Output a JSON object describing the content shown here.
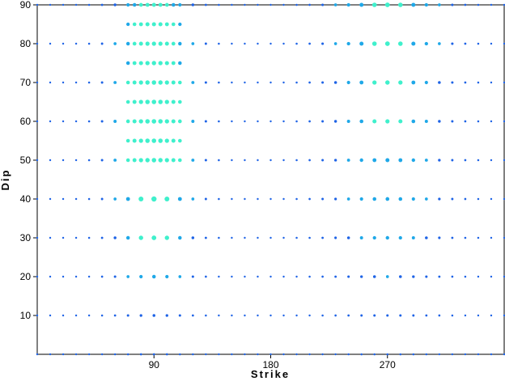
{
  "chart_data": {
    "type": "scatter",
    "title": "",
    "xlabel": "Strike",
    "ylabel": "Dip",
    "xlim": [
      0,
      360
    ],
    "ylim": [
      0,
      90
    ],
    "x_ticks": [
      90,
      180,
      270
    ],
    "y_ticks": [
      10,
      20,
      30,
      40,
      50,
      60,
      70,
      80,
      90
    ],
    "x_tick_labels": [
      "90",
      "180",
      "270"
    ],
    "y_tick_labels": [
      "10",
      "20",
      "30",
      "40",
      "50",
      "60",
      "70",
      "80",
      "90"
    ],
    "grid": false,
    "colors": {
      "low": "#1e63e6",
      "mid": "#1fa8e8",
      "high": "#3ff0cc",
      "axis": "#000000"
    },
    "grid_step": {
      "strike": 10,
      "dip": 10
    },
    "fine_region": {
      "strike": [
        70,
        110
      ],
      "dip": [
        50,
        90
      ],
      "strike_step": 5,
      "dip_step": 5
    },
    "peak": {
      "strike": 90,
      "dip": 60
    }
  }
}
